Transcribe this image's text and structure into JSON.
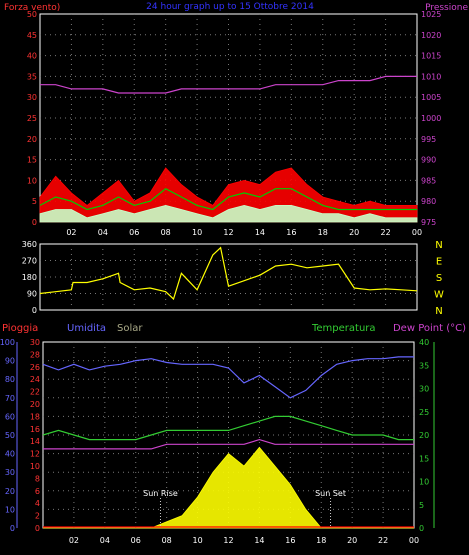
{
  "chart_data": [
    {
      "type": "area",
      "title": "24 hour graph up to 15 Ottobre 2014",
      "left_label": "Forza vento)",
      "right_label": "Pressione",
      "left_ticks": [
        "0",
        "5",
        "10",
        "15",
        "20",
        "25",
        "30",
        "35",
        "40",
        "45",
        "50"
      ],
      "right_ticks": [
        "975",
        "980",
        "985",
        "990",
        "995",
        "1000",
        "1005",
        "1010",
        "1015",
        "1020",
        "1025"
      ],
      "ylim_left": [
        0,
        50
      ],
      "ylim_right": [
        975,
        1025
      ],
      "x_ticks": [
        "02",
        "04",
        "06",
        "08",
        "10",
        "12",
        "14",
        "16",
        "18",
        "20",
        "22",
        "00"
      ],
      "x": [
        0,
        1,
        2,
        3,
        4,
        5,
        6,
        7,
        8,
        9,
        10,
        11,
        12,
        13,
        14,
        15,
        16,
        17,
        18,
        19,
        20,
        21,
        22,
        23,
        24
      ],
      "series": [
        {
          "name": "Pressione",
          "color": "#cc44cc",
          "values": [
            1008,
            1008,
            1007,
            1007,
            1007,
            1006,
            1006,
            1006,
            1006,
            1007,
            1007,
            1007,
            1007,
            1007,
            1007,
            1008,
            1008,
            1008,
            1008,
            1009,
            1009,
            1009,
            1010,
            1010,
            1010
          ]
        },
        {
          "color": "#ff0000",
          "values": [
            6,
            11,
            7,
            4,
            7,
            10,
            5,
            7,
            13,
            9,
            6,
            4,
            9,
            10,
            9,
            12,
            13,
            9,
            6,
            5,
            4,
            5,
            4,
            4,
            4
          ]
        },
        {
          "color": "#00cc00",
          "values": [
            4,
            6,
            5,
            3,
            4,
            6,
            4,
            5,
            8,
            6,
            4,
            3,
            6,
            7,
            6,
            8,
            8,
            6,
            4,
            3,
            3,
            3,
            3,
            3,
            3
          ]
        },
        {
          "color": "#c8ffc8",
          "values": [
            2,
            3,
            3,
            1,
            2,
            3,
            2,
            3,
            4,
            3,
            2,
            1,
            3,
            4,
            3,
            4,
            4,
            3,
            2,
            2,
            1,
            2,
            1,
            1,
            1
          ]
        }
      ]
    },
    {
      "type": "line",
      "left_ticks": [
        "0",
        "90",
        "180",
        "270",
        "360"
      ],
      "right_ticks": [
        "N",
        "W",
        "S",
        "E",
        "N"
      ],
      "ylim": [
        0,
        360
      ],
      "x": [
        0,
        1,
        2,
        2.1,
        3,
        4,
        5,
        5.1,
        6,
        7,
        8,
        8.5,
        9,
        10,
        11,
        11.5,
        12,
        13,
        14,
        15,
        16,
        17,
        18,
        19,
        20,
        21,
        22,
        23,
        24
      ],
      "series": [
        {
          "color": "#ffff00",
          "values": [
            90,
            100,
            110,
            150,
            150,
            170,
            200,
            150,
            110,
            120,
            100,
            60,
            200,
            110,
            300,
            340,
            130,
            160,
            190,
            240,
            250,
            230,
            240,
            250,
            120,
            110,
            115,
            110,
            105
          ]
        }
      ]
    },
    {
      "type": "line",
      "labels": {
        "rain": "Pioggia",
        "humidity": "Umidita",
        "solar": "Solar",
        "temperature": "Temperatura",
        "dewpoint": "Dew Point (°C)"
      },
      "humidity_ticks": [
        "0",
        "10",
        "20",
        "30",
        "40",
        "50",
        "60",
        "70",
        "80",
        "90",
        "100"
      ],
      "rain_ticks": [
        "0",
        "2",
        "4",
        "6",
        "8",
        "10",
        "12",
        "14",
        "16",
        "18",
        "20",
        "22",
        "24",
        "26",
        "28",
        "30"
      ],
      "temp_ticks": [
        "0",
        "5",
        "10",
        "15",
        "20",
        "25",
        "30",
        "35",
        "40"
      ],
      "ylim_humidity": [
        0,
        100
      ],
      "ylim_rain": [
        0,
        30
      ],
      "ylim_temp": [
        0,
        40
      ],
      "x_ticks": [
        "02",
        "04",
        "06",
        "08",
        "10",
        "12",
        "14",
        "16",
        "18",
        "20",
        "22",
        "00"
      ],
      "annotations": [
        {
          "text": "Sun Rise",
          "x": 7.6
        },
        {
          "text": "Sun Set",
          "x": 18.6
        }
      ],
      "x": [
        0,
        1,
        2,
        3,
        4,
        5,
        6,
        7,
        8,
        9,
        10,
        11,
        12,
        13,
        14,
        15,
        16,
        17,
        18,
        19,
        20,
        21,
        22,
        23,
        24
      ],
      "series": [
        {
          "name": "Umidita",
          "color": "#6666ff",
          "values": [
            88,
            85,
            88,
            85,
            87,
            88,
            90,
            91,
            89,
            88,
            88,
            88,
            86,
            78,
            82,
            76,
            70,
            74,
            82,
            88,
            90,
            91,
            91,
            92,
            92
          ]
        },
        {
          "name": "Temperatura",
          "color": "#33cc33",
          "values": [
            20,
            21,
            20,
            19,
            19,
            19,
            19,
            20,
            21,
            21,
            21,
            21,
            21,
            22,
            23,
            24,
            24,
            23,
            22,
            21,
            20,
            20,
            20,
            19,
            19
          ]
        },
        {
          "name": "Dew Point (°C)",
          "color": "#cc44cc",
          "values": [
            17,
            17,
            17,
            17,
            17,
            17,
            17,
            17,
            18,
            18,
            18,
            18,
            18,
            18,
            19,
            18,
            18,
            18,
            18,
            18,
            18,
            18,
            18,
            18,
            18
          ]
        },
        {
          "name": "Solar",
          "color": "#ffff00",
          "values": [
            0,
            0,
            0,
            0,
            0,
            0,
            0,
            0,
            1,
            2,
            5,
            9,
            12,
            10,
            13,
            10,
            7,
            3,
            0,
            0,
            0,
            0,
            0,
            0,
            0
          ]
        },
        {
          "name": "Pioggia",
          "color": "#ff0000",
          "values": [
            0,
            0,
            0,
            0,
            0,
            0,
            0,
            0,
            0,
            0,
            0,
            0,
            0,
            0,
            0,
            0,
            0,
            0,
            0,
            0,
            0,
            0,
            0,
            0,
            0
          ]
        }
      ]
    }
  ]
}
